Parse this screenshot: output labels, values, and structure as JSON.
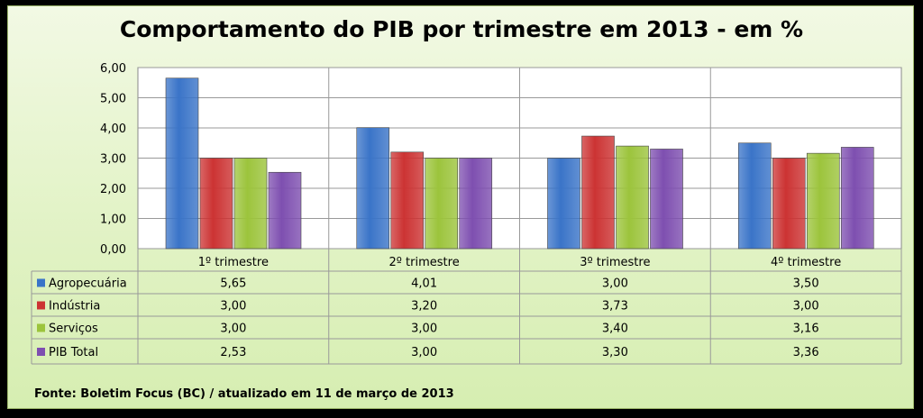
{
  "chart_data": {
    "type": "bar",
    "title": "Comportamento do PIB por trimestre em 2013 - em %",
    "categories": [
      "1º trimestre",
      "2º trimestre",
      "3º trimestre",
      "4º trimestre"
    ],
    "series": [
      {
        "name": "Agropecuária",
        "values": [
          5.65,
          4.01,
          3.0,
          3.5
        ],
        "labels": [
          "5,65",
          "4,01",
          "3,00",
          "3,50"
        ],
        "color": "#3a74c8"
      },
      {
        "name": "Indústria",
        "values": [
          3.0,
          3.2,
          3.73,
          3.0
        ],
        "labels": [
          "3,00",
          "3,20",
          "3,73",
          "3,00"
        ],
        "color": "#cc3333"
      },
      {
        "name": "Serviços",
        "values": [
          3.0,
          3.0,
          3.4,
          3.16
        ],
        "labels": [
          "3,00",
          "3,00",
          "3,40",
          "3,16"
        ],
        "color": "#9cc43c"
      },
      {
        "name": "PIB Total",
        "values": [
          2.53,
          3.0,
          3.3,
          3.36
        ],
        "labels": [
          "2,53",
          "3,00",
          "3,30",
          "3,36"
        ],
        "color": "#7e4fb0"
      }
    ],
    "yticks": [
      "0,00",
      "1,00",
      "2,00",
      "3,00",
      "4,00",
      "5,00",
      "6,00"
    ],
    "ylim": [
      0,
      6
    ],
    "grid": true,
    "legend": "data-table"
  },
  "footer": "Fonte: Boletim Focus (BC) / atualizado  em 11 de março de 2013"
}
